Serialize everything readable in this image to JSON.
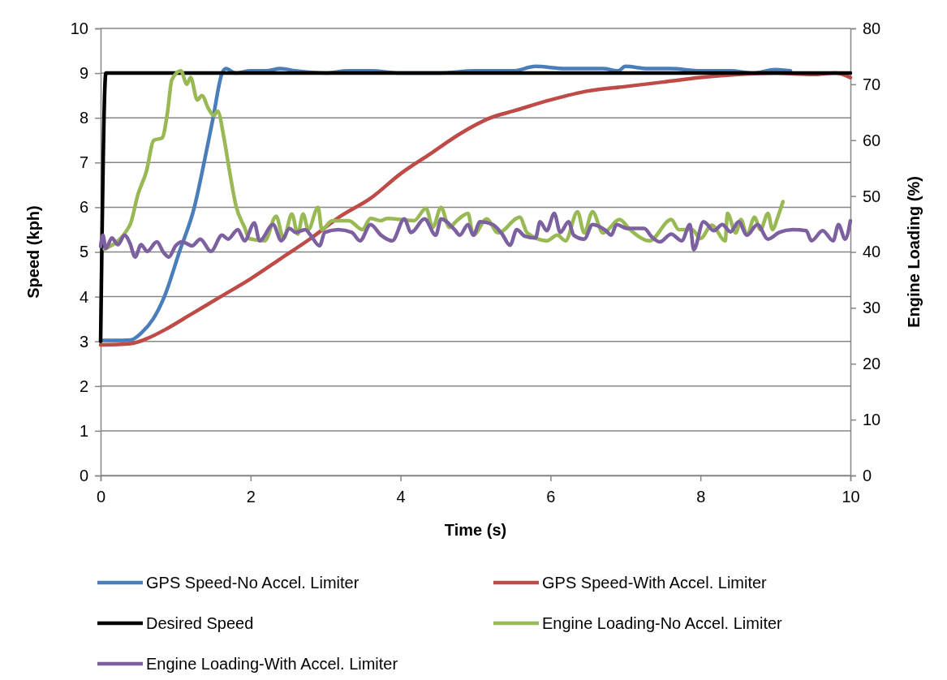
{
  "chart_data": {
    "type": "line",
    "xlabel": "Time (s)",
    "ylabel": "Speed (kph)",
    "y2label": "Engine Loading (%)",
    "xlim": [
      0,
      10
    ],
    "xticks": [
      0,
      2,
      4,
      6,
      8,
      10
    ],
    "ylim": [
      0,
      10
    ],
    "yticks": [
      0,
      1,
      2,
      3,
      4,
      5,
      6,
      7,
      8,
      9,
      10
    ],
    "y2lim": [
      0,
      80
    ],
    "y2ticks": [
      0,
      10,
      20,
      30,
      40,
      50,
      60,
      70,
      80
    ],
    "grid": "y",
    "legend": "bottom",
    "marker": "none",
    "line_style": "solid",
    "series": [
      {
        "name": "GPS Speed-No Accel. Limiter",
        "color": "#4a7ebb",
        "x": [
          0,
          0.2,
          0.4,
          0.55,
          0.7,
          0.85,
          1.05,
          1.25,
          1.38,
          1.5,
          1.62,
          1.67,
          1.8,
          2.0,
          2.2,
          2.4,
          2.6,
          3.0,
          3.3,
          3.6,
          4.0,
          4.5,
          5.0,
          5.5,
          5.8,
          6.2,
          6.7,
          6.9,
          7.0,
          7.3,
          7.6,
          8.0,
          8.4,
          8.7,
          9.0,
          9.2
        ],
        "values": [
          3.02,
          3.02,
          3.03,
          3.2,
          3.5,
          4.0,
          5.0,
          6.0,
          7.0,
          8.0,
          9.0,
          9.1,
          9.0,
          9.05,
          9.05,
          9.1,
          9.05,
          9.0,
          9.05,
          9.05,
          9.0,
          9.0,
          9.05,
          9.05,
          9.15,
          9.1,
          9.1,
          9.05,
          9.15,
          9.1,
          9.1,
          9.05,
          9.05,
          9.0,
          9.08,
          9.05
        ]
      },
      {
        "name": "GPS Speed-With Accel. Limiter",
        "color": "#be4b48",
        "x": [
          0,
          0.4,
          0.6,
          0.9,
          1.2,
          1.6,
          2.0,
          2.4,
          2.8,
          3.2,
          3.6,
          4.0,
          4.4,
          4.8,
          5.2,
          5.5,
          6.0,
          6.5,
          7.0,
          7.5,
          8.0,
          8.5,
          9.0,
          9.5,
          9.8,
          10
        ],
        "values": [
          2.92,
          2.95,
          3.05,
          3.3,
          3.6,
          4.0,
          4.4,
          4.85,
          5.3,
          5.8,
          6.2,
          6.75,
          7.2,
          7.65,
          8.0,
          8.15,
          8.4,
          8.6,
          8.7,
          8.8,
          8.9,
          8.97,
          9.0,
          8.97,
          9.0,
          8.9
        ]
      },
      {
        "name": "Desired Speed",
        "color": "#000000",
        "x": [
          0,
          0.07,
          10
        ],
        "values": [
          3,
          9,
          9
        ]
      },
      {
        "name": "Engine Loading-No Accel. Limiter",
        "color": "#98b954",
        "axis": "y2",
        "x": [
          0.05,
          0.39,
          0.5,
          0.61,
          0.71,
          0.82,
          0.89,
          0.95,
          1.07,
          1.15,
          1.2,
          1.29,
          1.35,
          1.44,
          1.51,
          1.56,
          1.65,
          1.72,
          1.81,
          1.92,
          1.98,
          2.19,
          2.34,
          2.44,
          2.55,
          2.63,
          2.7,
          2.77,
          2.9,
          2.95,
          3.09,
          3.31,
          3.49,
          3.6,
          3.74,
          3.82,
          4.18,
          4.34,
          4.43,
          4.54,
          4.65,
          4.75,
          4.9,
          4.97,
          5.15,
          5.3,
          5.59,
          5.69,
          5.95,
          6.09,
          6.2,
          6.36,
          6.45,
          6.56,
          6.7,
          6.92,
          7.06,
          7.32,
          7.61,
          7.71,
          7.89,
          8.0,
          8.15,
          8.33,
          8.36,
          8.47,
          8.54,
          8.62,
          8.72,
          8.8,
          8.9,
          8.96,
          9.03,
          9.1
        ],
        "values": [
          40.5,
          44.8,
          50.4,
          54.4,
          60,
          60.4,
          64.8,
          70.8,
          72.4,
          70,
          71.2,
          67.2,
          68,
          65.6,
          64.4,
          65.2,
          60,
          54.4,
          48,
          44.4,
          42.4,
          42,
          46.4,
          42.4,
          46.8,
          43.2,
          46.8,
          44,
          48,
          44,
          45.6,
          45.6,
          44,
          46,
          45.6,
          46,
          45.6,
          47.8,
          44.4,
          48,
          44.4,
          45.6,
          46.9,
          43,
          45.9,
          43.4,
          46.2,
          43.4,
          42,
          43,
          42,
          47.2,
          43.4,
          47.2,
          43.4,
          45.8,
          44,
          42,
          45.8,
          44,
          44,
          42.4,
          44.8,
          42,
          46.9,
          43.4,
          45.8,
          43,
          46.2,
          44,
          46.9,
          44,
          46.2,
          49
        ]
      },
      {
        "name": "Engine Loading-With Accel. Limiter",
        "color": "#7d60a0",
        "axis": "y2",
        "x": [
          0,
          0.03,
          0.07,
          0.15,
          0.23,
          0.32,
          0.39,
          0.46,
          0.54,
          0.62,
          0.75,
          0.84,
          0.91,
          1.0,
          1.09,
          1.22,
          1.33,
          1.47,
          1.62,
          1.7,
          1.83,
          1.92,
          2.05,
          2.12,
          2.3,
          2.41,
          2.52,
          2.6,
          2.73,
          2.8,
          2.92,
          2.99,
          3.17,
          3.35,
          3.46,
          3.6,
          3.74,
          3.89,
          4.05,
          4.14,
          4.32,
          4.47,
          4.54,
          4.72,
          4.79,
          4.9,
          4.97,
          5.06,
          5.23,
          5.35,
          5.46,
          5.55,
          5.66,
          5.8,
          5.86,
          5.95,
          6.05,
          6.13,
          6.24,
          6.31,
          6.45,
          6.56,
          6.74,
          6.81,
          6.88,
          7.03,
          7.25,
          7.35,
          7.46,
          7.61,
          7.75,
          7.86,
          7.91,
          8.04,
          8.18,
          8.29,
          8.4,
          8.51,
          8.62,
          8.76,
          8.9,
          9.05,
          9.23,
          9.41,
          9.48,
          9.63,
          9.77,
          9.84,
          9.93,
          10
        ],
        "values": [
          41,
          43,
          40.6,
          42.5,
          41.3,
          43,
          41.6,
          39.1,
          41.3,
          40.1,
          41.8,
          39.9,
          39.1,
          41.1,
          41.8,
          41.1,
          42.3,
          40.1,
          43,
          42.3,
          44,
          42,
          45.2,
          42,
          44.9,
          42,
          44.2,
          43.5,
          44,
          43,
          41.1,
          43.5,
          44,
          43.5,
          42,
          44.9,
          43,
          42,
          45.9,
          43.5,
          45.9,
          43,
          45.9,
          44,
          43,
          44.9,
          43,
          45.4,
          44.9,
          43.3,
          41.2,
          44,
          42.8,
          42.5,
          45.4,
          43.8,
          46.9,
          43.5,
          45.4,
          43,
          42.3,
          44.9,
          43.8,
          43,
          44.9,
          44.2,
          44.2,
          42.7,
          41.8,
          43.2,
          42,
          44.9,
          40.4,
          45.4,
          43.8,
          44.9,
          43.6,
          45.4,
          43,
          44.9,
          42.3,
          43.5,
          44,
          43.8,
          42,
          43.8,
          42,
          44.9,
          42.3,
          45.6
        ]
      }
    ]
  }
}
